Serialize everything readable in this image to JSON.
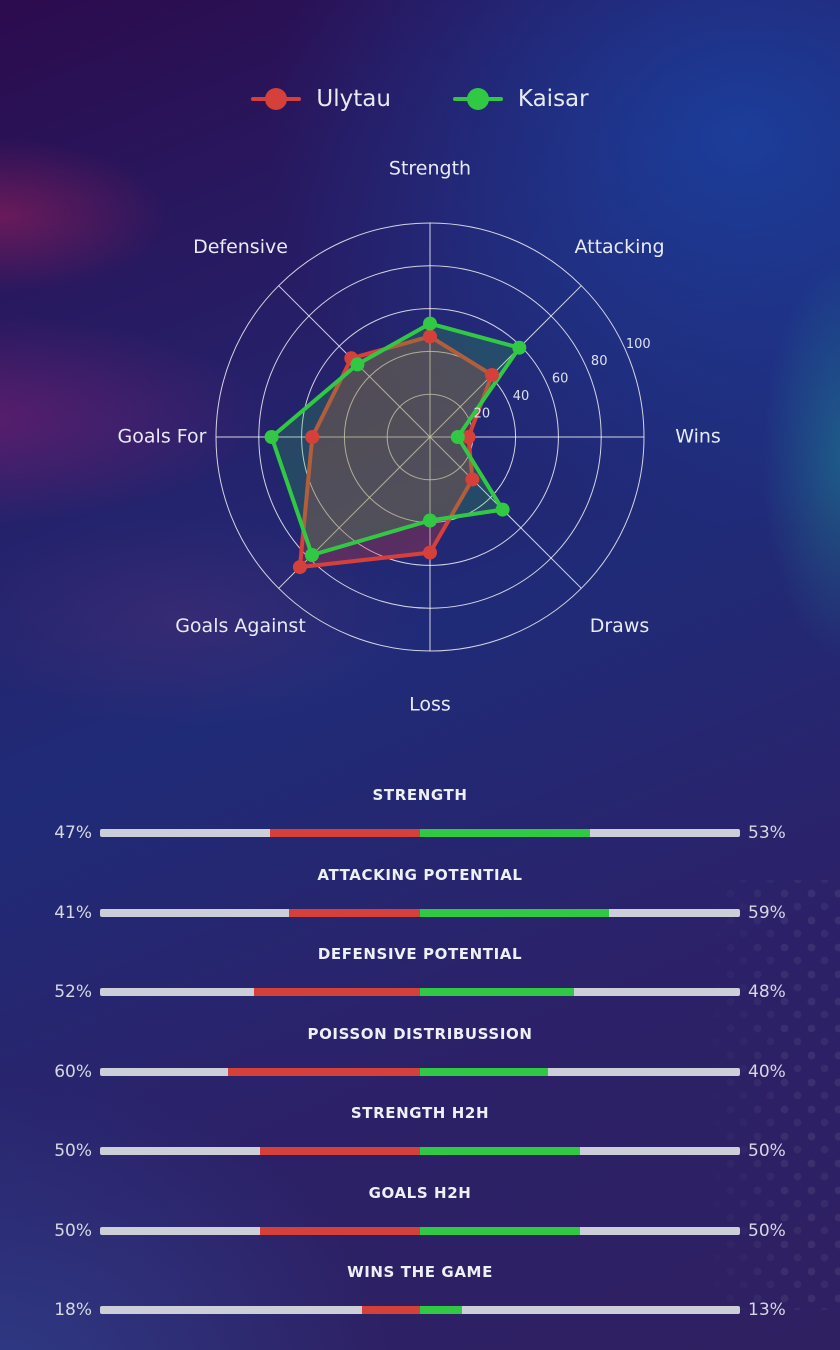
{
  "colors": {
    "home_red": "#d6403a",
    "away_green": "#31c944",
    "track_gray": "#cccfd9",
    "grid_white": "rgba(255,255,255,0.8)",
    "tick_text": "#dde0ee",
    "axis_text": "#e8eaf5"
  },
  "chart_data": [
    {
      "type": "radar",
      "title": "",
      "categories": [
        "Strength",
        "Attacking",
        "Wins",
        "Draws",
        "Loss",
        "Goals Against",
        "Goals For",
        "Defensive"
      ],
      "axis_angles_deg": [
        90,
        45,
        0,
        -45,
        -90,
        -135,
        180,
        135
      ],
      "series": [
        {
          "name": "Ulytau",
          "color": "#d6403a",
          "fill": "rgba(214,64,58,0.30)",
          "values": [
            47,
            41,
            18,
            28,
            54,
            86,
            55,
            52
          ]
        },
        {
          "name": "Kaisar",
          "color": "#31c944",
          "fill": "rgba(49,201,68,0.22)",
          "values": [
            53,
            59,
            13,
            48,
            39,
            78,
            74,
            48
          ]
        }
      ],
      "ticks": [
        20,
        40,
        60,
        80,
        100
      ],
      "max": 100,
      "grid": "on",
      "legend_position": "top",
      "tick_label_angle_deg": 24
    },
    {
      "type": "bar",
      "orientation": "horizontal-paired",
      "categories": [
        "STRENGTH",
        "ATTACKING POTENTIAL",
        "DEFENSIVE POTENTIAL",
        "POISSON DISTRIBUSSION",
        "STRENGTH H2H",
        "GOALS H2H",
        "WINS THE GAME"
      ],
      "series": [
        {
          "name": "Ulytau",
          "side": "left",
          "color": "#d6403a",
          "values": [
            47,
            41,
            52,
            60,
            50,
            50,
            18
          ]
        },
        {
          "name": "Kaisar",
          "side": "right",
          "color": "#31c944",
          "values": [
            53,
            59,
            48,
            40,
            50,
            50,
            13
          ]
        }
      ],
      "value_suffix": "%"
    }
  ]
}
